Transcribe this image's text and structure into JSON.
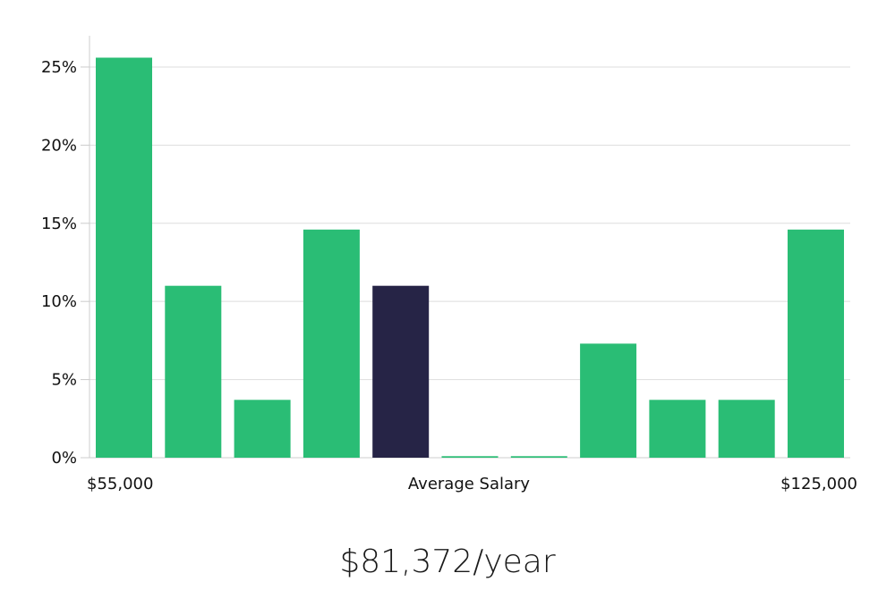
{
  "chart_data": {
    "type": "bar",
    "categories": [
      "1",
      "2",
      "3",
      "4",
      "5",
      "6",
      "7",
      "8",
      "9",
      "10",
      "11"
    ],
    "values": [
      25.6,
      11.0,
      3.7,
      14.6,
      11.0,
      0.1,
      0.1,
      7.3,
      3.7,
      3.7,
      14.6
    ],
    "highlight_index": 4,
    "ylim": [
      0,
      27
    ],
    "yticks": [
      0,
      5,
      10,
      15,
      20,
      25
    ],
    "ytick_labels": [
      "0%",
      "5%",
      "10%",
      "15%",
      "20%",
      "25%"
    ],
    "x_min_label": "$55,000",
    "x_max_label": "$125,000",
    "xlabel": "Average Salary",
    "grid": true,
    "colors": {
      "bar": "#2abd75",
      "highlight": "#262446",
      "grid": "#dddddd",
      "axis": "#cccccc"
    }
  },
  "summary": {
    "salary_text": "$81,372/year"
  }
}
